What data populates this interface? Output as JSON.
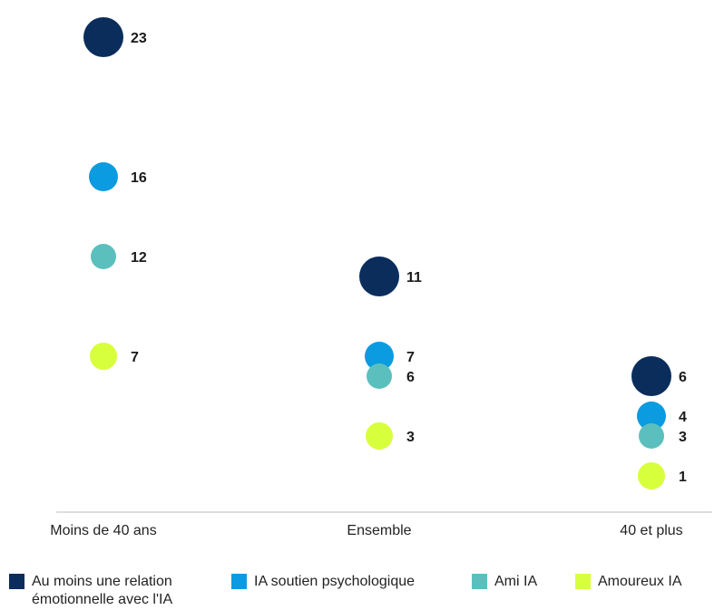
{
  "chart_data": {
    "type": "scatter",
    "categories": [
      "Moins de 40 ans",
      "Ensemble",
      "40 et plus"
    ],
    "series": [
      {
        "name": "Au moins une relation émotionnelle avec l'IA",
        "color": "#0a2d5c",
        "values": [
          23,
          11,
          6
        ]
      },
      {
        "name": "IA soutien psychologique",
        "color": "#0b9be0",
        "values": [
          16,
          7,
          4
        ]
      },
      {
        "name": "Ami IA",
        "color": "#5bc0bd",
        "values": [
          12,
          6,
          3
        ]
      },
      {
        "name": "Amoureux IA",
        "color": "#d7ff3c",
        "values": [
          7,
          3,
          1
        ]
      }
    ],
    "grid": false,
    "legend": "bottom"
  },
  "legend": [
    {
      "label": "Au moins une relation\némotionnelle avec l'IA",
      "color": "#0a2d5c"
    },
    {
      "label": "IA soutien psychologique",
      "color": "#0b9be0"
    },
    {
      "label": "Ami IA",
      "color": "#5bc0bd"
    },
    {
      "label": "Amoureux IA",
      "color": "#d7ff3c"
    }
  ]
}
